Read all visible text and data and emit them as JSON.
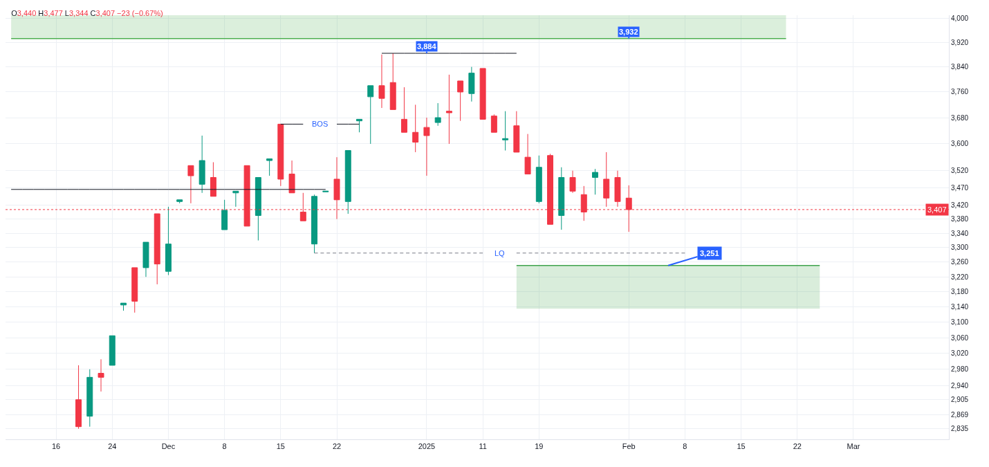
{
  "chart_data": {
    "type": "candlestick",
    "title": "O3,440 H3,477 L3,344 C3,407 −23 (−0.67%)",
    "categories": [
      null,
      null,
      null,
      null,
      "16",
      null,
      null,
      null,
      null,
      "24",
      null,
      null,
      null,
      null,
      "Dec",
      null,
      null,
      null,
      null,
      "8",
      null,
      null,
      null,
      null,
      "15",
      null,
      null,
      null,
      null,
      "22",
      null,
      null,
      null,
      null,
      null,
      null,
      null,
      "2025",
      null,
      null,
      null,
      null,
      "11",
      null,
      null,
      null,
      null,
      "19",
      null,
      null,
      null,
      null,
      null,
      null,
      null,
      "Feb",
      null,
      null,
      null,
      null,
      "8",
      null,
      null,
      null,
      null,
      "15",
      null,
      null,
      null,
      null,
      "22",
      null,
      null,
      null,
      null,
      "Mar",
      null,
      null,
      null,
      null,
      null,
      null,
      null,
      null
    ],
    "ohlc": [
      null,
      null,
      null,
      null,
      null,
      null,
      [
        2905,
        2990,
        2835,
        2840
      ],
      [
        2865,
        2980,
        2840,
        2960
      ],
      [
        2970,
        3005,
        2925,
        2960
      ],
      [
        2990,
        3065,
        2990,
        3065
      ],
      [
        3145,
        3150,
        3130,
        3150
      ],
      [
        3245,
        3245,
        3125,
        3155
      ],
      [
        3245,
        3315,
        3220,
        3315
      ],
      [
        3395,
        3395,
        3200,
        3255
      ],
      [
        3235,
        3415,
        3225,
        3310
      ],
      [
        3430,
        3435,
        3425,
        3435
      ],
      [
        3535,
        3535,
        3425,
        3505
      ],
      [
        3480,
        3625,
        3455,
        3550
      ],
      [
        3500,
        3545,
        3445,
        3445
      ],
      [
        3350,
        3435,
        3350,
        3405
      ],
      [
        3455,
        3460,
        3415,
        3460
      ],
      [
        3535,
        3535,
        3360,
        3360
      ],
      [
        3390,
        3500,
        3320,
        3500
      ],
      [
        3550,
        3555,
        3505,
        3555
      ],
      [
        3660,
        3660,
        3475,
        3495
      ],
      [
        3510,
        3550,
        3455,
        3455
      ],
      [
        3400,
        3455,
        3375,
        3375
      ],
      [
        3310,
        3450,
        3285,
        3445
      ],
      [
        3458,
        3460,
        3458,
        3460
      ],
      [
        3495,
        3560,
        3380,
        3435
      ],
      [
        3430,
        3580,
        3395,
        3580
      ],
      [
        3670,
        3675,
        3635,
        3675
      ],
      [
        3745,
        3780,
        3600,
        3780
      ],
      [
        3780,
        3880,
        3710,
        3740
      ],
      [
        3790,
        3884,
        3705,
        3705
      ],
      [
        3675,
        3775,
        3635,
        3635
      ],
      [
        3635,
        3720,
        3575,
        3605
      ],
      [
        3650,
        3680,
        3505,
        3625
      ],
      [
        3665,
        3725,
        3655,
        3680
      ],
      [
        3700,
        3815,
        3600,
        3695
      ],
      [
        3795,
        3795,
        3670,
        3760
      ],
      [
        3755,
        3840,
        3730,
        3820
      ],
      [
        3835,
        3835,
        3675,
        3675
      ],
      [
        3685,
        3690,
        3635,
        3635
      ],
      [
        3612,
        3700,
        3580,
        3616
      ],
      [
        3655,
        3700,
        3575,
        3575
      ],
      [
        3560,
        3630,
        3510,
        3510
      ],
      [
        3430,
        3565,
        3425,
        3530
      ],
      [
        3565,
        3570,
        3365,
        3365
      ],
      [
        3390,
        3530,
        3350,
        3500
      ],
      [
        3500,
        3520,
        3455,
        3460
      ],
      [
        3450,
        3475,
        3375,
        3400
      ],
      [
        3500,
        3525,
        3450,
        3515
      ],
      [
        3495,
        3575,
        3415,
        3440
      ],
      [
        3500,
        3520,
        3415,
        3430
      ],
      [
        3440,
        3477,
        3344,
        3407
      ],
      null,
      null,
      null,
      null,
      null,
      null,
      null,
      null,
      null,
      null,
      null,
      null,
      null,
      null,
      null,
      null,
      null,
      null,
      null,
      null,
      null,
      null,
      null,
      null,
      null,
      null,
      null,
      null
    ],
    "colors": [
      null,
      null,
      null,
      null,
      null,
      null,
      "#f23645",
      "#089981",
      "#f23645",
      "#089981",
      "#089981",
      "#f23645",
      "#089981",
      "#f23645",
      "#089981",
      "#089981",
      "#f23645",
      "#089981",
      "#f23645",
      "#089981",
      "#089981",
      "#f23645",
      "#089981",
      "#089981",
      "#f23645",
      "#f23645",
      "#f23645",
      "#089981",
      "#089981",
      "#f23645",
      "#089981",
      "#089981",
      "#089981",
      "#f23645",
      "#f23645",
      "#f23645",
      "#f23645",
      "#f23645",
      "#089981",
      "#f23645",
      "#f23645",
      "#089981",
      "#f23645",
      "#f23645",
      "#089981",
      "#f23645",
      "#f23645",
      "#089981",
      "#f23645",
      "#089981",
      "#f23645",
      "#f23645",
      "#089981",
      "#f23645",
      "#f23645",
      "#f23645",
      null,
      null,
      null,
      null,
      null,
      null,
      null,
      null,
      null,
      null,
      null,
      null,
      null,
      null,
      null,
      null,
      null,
      null,
      null,
      null,
      null,
      null,
      null,
      null,
      null,
      null,
      null,
      null
    ],
    "series": [
      {
        "type": "line",
        "color": "#4caf50",
        "values": [
          3932,
          3932,
          3932,
          3932,
          3932,
          3932,
          3932,
          3932,
          3932,
          3932,
          3932,
          3932,
          3932,
          3932,
          3932,
          3932,
          3932,
          3932,
          3932,
          3932,
          3932,
          3932,
          3932,
          3932,
          3932,
          3932,
          3932,
          3932,
          3932,
          3932,
          3932,
          3932,
          3932,
          3932,
          3932,
          3932,
          3932,
          3932,
          3932,
          3932,
          3932,
          3932,
          3932,
          3932,
          3932,
          3932,
          3932,
          3932,
          3932,
          3932,
          3932,
          3932,
          3932,
          3932,
          3932,
          3932,
          3932,
          3932,
          3932,
          3932,
          3932,
          3932,
          3932,
          3932,
          3932,
          3932,
          3932,
          3932,
          3932,
          3932,
          null,
          null,
          null,
          null,
          null,
          null,
          null,
          null,
          null,
          null,
          null,
          null,
          null,
          null
        ],
        "upper": [
          4010,
          4010,
          4010,
          4010,
          4010,
          4010,
          4010,
          4010,
          4010,
          4010,
          4010,
          4010,
          4010,
          4010,
          4010,
          4010,
          4010,
          4010,
          4010,
          4010,
          4010,
          4010,
          4010,
          4010,
          4010,
          4010,
          4010,
          4010,
          4010,
          4010,
          4010,
          4010,
          4010,
          4010,
          4010,
          4010,
          4010,
          4010,
          4010,
          4010,
          4010,
          4010,
          4010,
          4010,
          4010,
          4010,
          4010,
          4010,
          4010,
          4010,
          4010,
          4010,
          4010,
          4010,
          4010,
          4010,
          4010,
          4010,
          4010,
          4010,
          4010,
          4010,
          4010,
          4010,
          4010,
          4010,
          4010,
          4010,
          4010,
          4010,
          null,
          null,
          null,
          null,
          null,
          null,
          null,
          null,
          null,
          null,
          null,
          null,
          null,
          null
        ],
        "lower": [
          3932,
          3932,
          3932,
          3932,
          3932,
          3932,
          3932,
          3932,
          3932,
          3932,
          3932,
          3932,
          3932,
          3932,
          3932,
          3932,
          3932,
          3932,
          3932,
          3932,
          3932,
          3932,
          3932,
          3932,
          3932,
          3932,
          3932,
          3932,
          3932,
          3932,
          3932,
          3932,
          3932,
          3932,
          3932,
          3932,
          3932,
          3932,
          3932,
          3932,
          3932,
          3932,
          3932,
          3932,
          3932,
          3932,
          3932,
          3932,
          3932,
          3932,
          3932,
          3932,
          3932,
          3932,
          3932,
          3932,
          3932,
          3932,
          3932,
          3932,
          3932,
          3932,
          3932,
          3932,
          3932,
          3932,
          3932,
          3932,
          3932,
          3932,
          null,
          null,
          null,
          null,
          null,
          null,
          null,
          null,
          null,
          null,
          null,
          null,
          null,
          null
        ]
      },
      {
        "type": "line",
        "name": "3,251",
        "color": "#3fa34d",
        "values": [
          null,
          null,
          null,
          null,
          null,
          null,
          null,
          null,
          null,
          null,
          null,
          null,
          null,
          null,
          null,
          null,
          null,
          null,
          null,
          null,
          null,
          null,
          null,
          null,
          null,
          null,
          null,
          null,
          null,
          null,
          null,
          null,
          null,
          null,
          null,
          null,
          null,
          null,
          null,
          null,
          null,
          null,
          null,
          null,
          null,
          3251,
          3251,
          3251,
          3251,
          3251,
          3251,
          3251,
          3251,
          3251,
          3251,
          3251,
          3251,
          3251,
          3251,
          3251,
          3251,
          3251,
          3251,
          3251,
          3251,
          3251,
          3251,
          3251,
          3251,
          3251,
          3251,
          3251,
          3251,
          null,
          null,
          null,
          null,
          null,
          null,
          null,
          null,
          null,
          null,
          null
        ],
        "upper": [
          null,
          null,
          null,
          null,
          null,
          null,
          null,
          null,
          null,
          null,
          null,
          null,
          null,
          null,
          null,
          null,
          null,
          null,
          null,
          null,
          null,
          null,
          null,
          null,
          null,
          null,
          null,
          null,
          null,
          null,
          null,
          null,
          null,
          null,
          null,
          null,
          null,
          null,
          null,
          null,
          null,
          null,
          null,
          null,
          null,
          3251,
          3251,
          3251,
          3251,
          3251,
          3251,
          3251,
          3251,
          3251,
          3251,
          3251,
          3251,
          3251,
          3251,
          3251,
          3251,
          3251,
          3251,
          3251,
          3251,
          3251,
          3251,
          3251,
          3251,
          3251,
          3251,
          3251,
          3251,
          null,
          null,
          null,
          null,
          null,
          null,
          null,
          null,
          null,
          null,
          null
        ],
        "lower": [
          null,
          null,
          null,
          null,
          null,
          null,
          null,
          null,
          null,
          null,
          null,
          null,
          null,
          null,
          null,
          null,
          null,
          null,
          null,
          null,
          null,
          null,
          null,
          null,
          null,
          null,
          null,
          null,
          null,
          null,
          null,
          null,
          null,
          null,
          null,
          null,
          null,
          null,
          null,
          null,
          null,
          null,
          null,
          null,
          null,
          3135,
          3135,
          3135,
          3135,
          3135,
          3135,
          3135,
          3135,
          3135,
          3135,
          3135,
          3135,
          3135,
          3135,
          3135,
          3135,
          3135,
          3135,
          3135,
          3135,
          3135,
          3135,
          3135,
          3135,
          3135,
          3135,
          3135,
          3135,
          null,
          null,
          null,
          null,
          null,
          null,
          null,
          null,
          null,
          null,
          null
        ]
      },
      {
        "type": "line",
        "color": "#131722",
        "values": [
          null,
          null,
          null,
          null,
          null,
          null,
          null,
          null,
          null,
          null,
          null,
          null,
          null,
          null,
          null,
          null,
          null,
          null,
          null,
          null,
          null,
          null,
          null,
          null,
          null,
          null,
          null,
          null,
          null,
          null,
          null,
          null,
          null,
          3884,
          3884,
          3884,
          3884,
          3884,
          3884,
          3884,
          3884,
          3884,
          3884,
          3884,
          3884,
          3884,
          null,
          null,
          null,
          null,
          null,
          null,
          null,
          null,
          null,
          null,
          null,
          null,
          null,
          null,
          null,
          null,
          null,
          null,
          null,
          null,
          null,
          null,
          null,
          null,
          null,
          null,
          null,
          null,
          null,
          null,
          null,
          null,
          null,
          null,
          null,
          null,
          null,
          null
        ]
      },
      {
        "type": "line",
        "color": "#131722",
        "values": [
          3465,
          3465,
          3465,
          3465,
          3465,
          3465,
          3465,
          3465,
          3465,
          3465,
          3465,
          3465,
          3465,
          3465,
          3465,
          3465,
          3465,
          3465,
          3465,
          3465,
          3465,
          3465,
          3465,
          3465,
          3465,
          3465,
          3465,
          3465,
          3465,
          null,
          null,
          null,
          null,
          null,
          null,
          null,
          null,
          null,
          null,
          null,
          null,
          null,
          null,
          null,
          null,
          null,
          null,
          null,
          null,
          null,
          null,
          null,
          null,
          null,
          null,
          null,
          null,
          null,
          null,
          null,
          null,
          null,
          null,
          null,
          null,
          null,
          null,
          null,
          null,
          null,
          null,
          null,
          null,
          null,
          null,
          null,
          null,
          null,
          null,
          null,
          null,
          null,
          null,
          null
        ]
      },
      {
        "type": "line",
        "name": "BOS",
        "color": "#131722",
        "values": [
          null,
          null,
          null,
          null,
          null,
          null,
          null,
          null,
          null,
          null,
          null,
          null,
          null,
          null,
          null,
          null,
          null,
          null,
          null,
          null,
          null,
          null,
          null,
          null,
          3660,
          3660,
          3660,
          null,
          null,
          3660,
          3660,
          3660,
          null,
          null,
          null,
          null,
          null,
          null,
          null,
          null,
          null,
          null,
          null,
          null,
          null,
          null,
          null,
          null,
          null,
          null,
          null,
          null,
          null,
          null,
          null,
          null,
          null,
          null,
          null,
          null,
          null,
          null,
          null,
          null,
          null,
          null,
          null,
          null,
          null,
          null,
          null,
          null,
          null,
          null,
          null,
          null,
          null,
          null,
          null,
          null,
          null,
          null,
          null,
          null
        ]
      },
      {
        "type": "line",
        "name": "LQ",
        "color": "#787b86",
        "line_style": "dashed",
        "values": [
          null,
          null,
          null,
          null,
          null,
          null,
          null,
          null,
          null,
          null,
          null,
          null,
          null,
          null,
          null,
          null,
          null,
          null,
          null,
          null,
          null,
          null,
          null,
          null,
          null,
          null,
          null,
          3285,
          3285,
          3285,
          3285,
          3285,
          3285,
          3285,
          3285,
          3285,
          3285,
          3285,
          3285,
          3285,
          3285,
          3285,
          3285,
          null,
          null,
          3285,
          3285,
          3285,
          3285,
          3285,
          3285,
          3285,
          3285,
          3285,
          3285,
          3285,
          3285,
          3285,
          3285,
          3285,
          3285,
          null,
          null,
          null,
          null,
          null,
          null,
          null,
          null,
          null,
          null,
          null,
          null,
          null,
          null,
          null,
          null,
          null,
          null,
          null,
          null,
          null,
          null,
          null
        ]
      }
    ],
    "ref_lines": [
      {
        "axis": "y",
        "value": 3407,
        "label": "3,407",
        "color": "#f23645",
        "line_style": "dotted"
      }
    ],
    "annotations": [
      {
        "text": "3,884",
        "x": "2025",
        "y": 3884
      },
      {
        "text": "3,932",
        "x": "Feb",
        "y": 3932
      }
    ],
    "ylim": [
      2810,
      4010
    ],
    "yticks": [
      {
        "value": 2835,
        "label": "2,835"
      },
      {
        "value": 2869,
        "label": "2,869"
      },
      {
        "value": 2905,
        "label": "2,905"
      },
      {
        "value": 2940,
        "label": "2,940"
      },
      {
        "value": 2980,
        "label": "2,980"
      },
      {
        "value": 3020,
        "label": "3,020"
      },
      {
        "value": 3060,
        "label": "3,060"
      },
      {
        "value": 3100,
        "label": "3,100"
      },
      {
        "value": 3140,
        "label": "3,140"
      },
      {
        "value": 3180,
        "label": "3,180"
      },
      {
        "value": 3220,
        "label": "3,220"
      },
      {
        "value": 3260,
        "label": "3,260"
      },
      {
        "value": 3300,
        "label": "3,300"
      },
      {
        "value": 3340,
        "label": "3,340"
      },
      {
        "value": 3380,
        "label": "3,380"
      },
      {
        "value": 3420,
        "label": "3,420"
      },
      {
        "value": 3470,
        "label": "3,470"
      },
      {
        "value": 3520,
        "label": "3,520"
      },
      {
        "value": 3600,
        "label": "3,600"
      },
      {
        "value": 3680,
        "label": "3,680"
      },
      {
        "value": 3760,
        "label": "3,760"
      },
      {
        "value": 3840,
        "label": "3,840"
      },
      {
        "value": 3920,
        "label": "3,920"
      },
      {
        "value": 4000,
        "label": "4,000"
      }
    ],
    "log": "y",
    "grid": true
  }
}
